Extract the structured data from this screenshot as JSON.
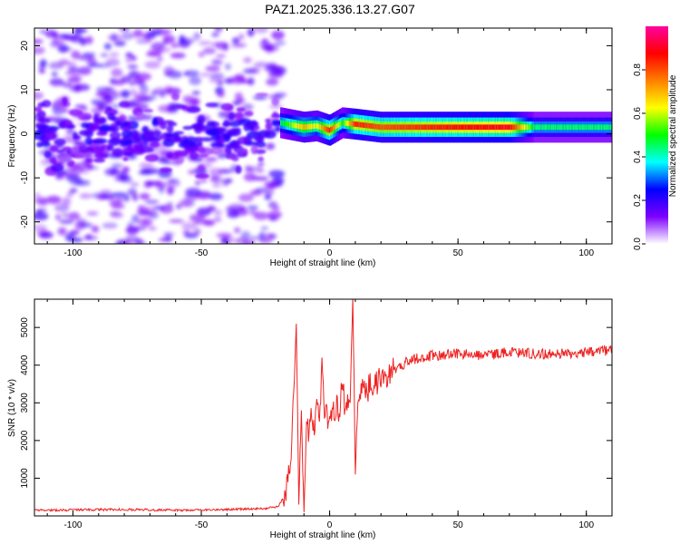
{
  "page": {
    "title": "PAZ1.2025.336.13.27.G07"
  },
  "chart_data": [
    {
      "type": "heatmap",
      "xlabel": "Height of straight line (km)",
      "ylabel": "Frequency (Hz)",
      "xlim": [
        -115,
        110
      ],
      "ylim": [
        -25,
        24
      ],
      "xticks": [
        -100,
        -50,
        0,
        50,
        100
      ],
      "yticks": [
        -20,
        -10,
        0,
        10,
        20
      ],
      "colorbar": {
        "label": "Normalized spectral amplitude",
        "range": [
          0,
          1
        ],
        "ticks": [
          0.0,
          0.2,
          0.4,
          0.6,
          0.8
        ],
        "tick_labels": [
          "0.0",
          "0.2",
          "0.4",
          "0.6",
          "0.8"
        ],
        "colormap": [
          "#ffffff",
          "#7d00ff",
          "#0000ff",
          "#00ffff",
          "#00ff00",
          "#ffff00",
          "#ff8000",
          "#ff0000",
          "#ff00a0"
        ]
      },
      "features": {
        "noise_region_x": [
          -115,
          -19
        ],
        "signal_start_x": -19,
        "signal_band": [
          {
            "x": -19,
            "freq": 2.5,
            "amp": 0.45
          },
          {
            "x": -10,
            "freq": 1.5,
            "amp": 0.7
          },
          {
            "x": -5,
            "freq": 1.8,
            "amp": 0.6
          },
          {
            "x": 0,
            "freq": 0.8,
            "amp": 0.85
          },
          {
            "x": 5,
            "freq": 2.5,
            "amp": 0.5
          },
          {
            "x": 10,
            "freq": 2.2,
            "amp": 0.85
          },
          {
            "x": 20,
            "freq": 1.5,
            "amp": 0.8
          },
          {
            "x": 40,
            "freq": 1.5,
            "amp": 0.85
          },
          {
            "x": 70,
            "freq": 1.5,
            "amp": 0.9
          },
          {
            "x": 80,
            "freq": 1.5,
            "amp": 0.45
          },
          {
            "x": 110,
            "freq": 1.5,
            "amp": 0.45
          }
        ]
      }
    },
    {
      "type": "line",
      "xlabel": "Height of straight line (km)",
      "ylabel": "SNR (10 * v/v)",
      "xlim": [
        -115,
        110
      ],
      "ylim": [
        0,
        5750
      ],
      "xticks": [
        -100,
        -50,
        0,
        50,
        100
      ],
      "yticks": [
        1000,
        2000,
        3000,
        4000,
        5000
      ],
      "color": "#ee2222",
      "series": [
        {
          "x": [
            -115,
            -100,
            -80,
            -60,
            -40,
            -25,
            -20,
            -17,
            -15,
            -13,
            -12,
            -11,
            -10,
            -9,
            -8,
            -7,
            -6,
            -5,
            -4,
            -3,
            -2,
            -1,
            0,
            2,
            4,
            5,
            6,
            7,
            8,
            9,
            10,
            11,
            12,
            15,
            20,
            25,
            30,
            35,
            40,
            50,
            60,
            70,
            80,
            90,
            100,
            110
          ],
          "y": [
            150,
            160,
            170,
            150,
            170,
            200,
            250,
            600,
            1500,
            5100,
            300,
            2800,
            100,
            2500,
            2200,
            2700,
            2400,
            3100,
            2500,
            4200,
            2600,
            2700,
            2600,
            2800,
            2900,
            3500,
            2800,
            3200,
            3000,
            5800,
            1100,
            3000,
            3300,
            3400,
            3600,
            3850,
            4100,
            4200,
            4250,
            4300,
            4250,
            4350,
            4300,
            4300,
            4350,
            4400
          ]
        }
      ]
    }
  ]
}
